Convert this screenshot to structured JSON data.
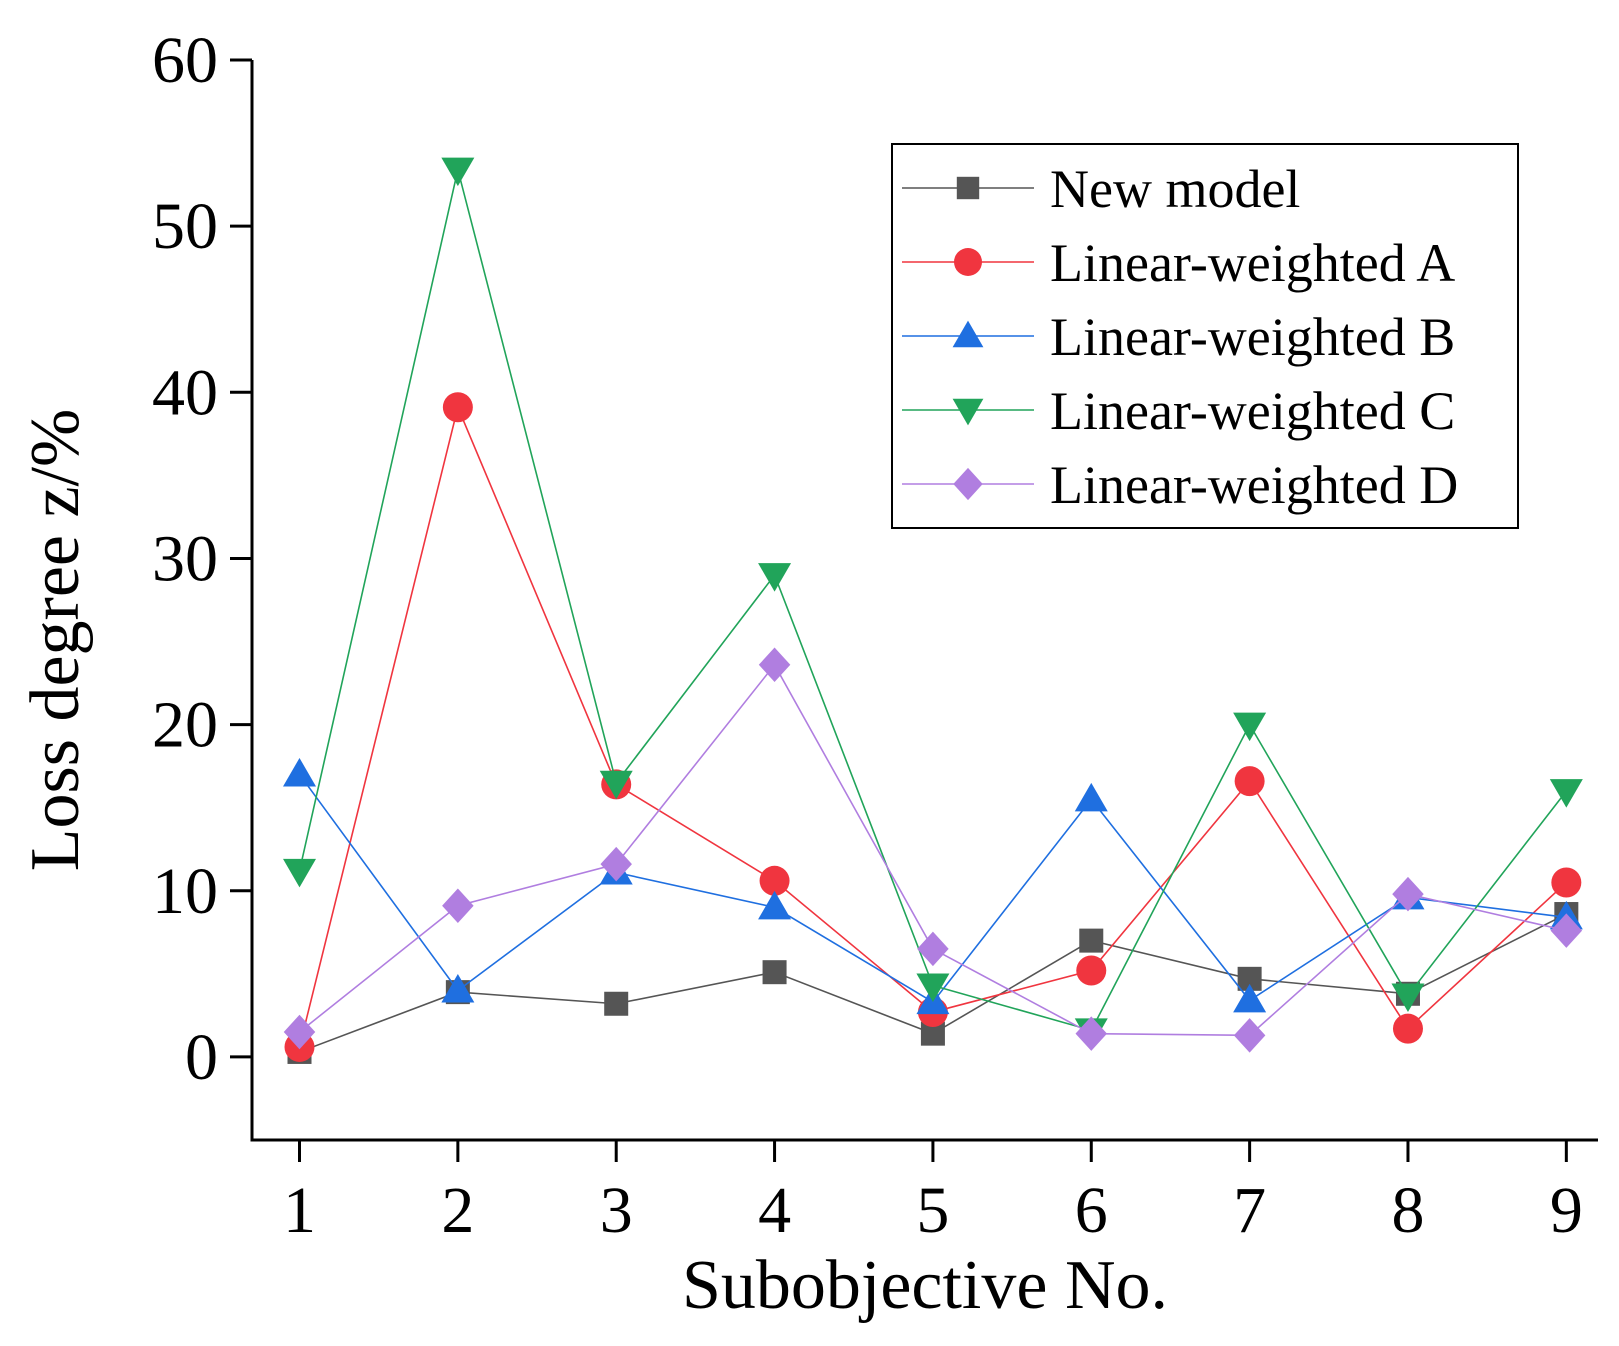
{
  "chart_data": {
    "type": "line",
    "xlabel": "Subobjective No.",
    "ylabel": "Loss degree z/%",
    "x": [
      1,
      2,
      3,
      4,
      5,
      6,
      7,
      8,
      9
    ],
    "xlim": [
      0.7,
      9.2
    ],
    "ylim": [
      -5,
      60
    ],
    "yticks": [
      0,
      10,
      20,
      30,
      40,
      50,
      60
    ],
    "grid": false,
    "legend_position": "top-right",
    "series": [
      {
        "name": "New model",
        "color": "#555555",
        "marker": "square",
        "values": [
          0.3,
          3.9,
          3.2,
          5.1,
          1.4,
          7.0,
          4.7,
          3.8,
          8.6
        ]
      },
      {
        "name": "Linear-weighted A",
        "color": "#f0353f",
        "marker": "circle",
        "values": [
          0.6,
          39.1,
          16.4,
          10.6,
          2.7,
          5.2,
          16.6,
          1.7,
          10.5
        ]
      },
      {
        "name": "Linear-weighted B",
        "color": "#1f6fe0",
        "marker": "triangle-up",
        "values": [
          17.0,
          4.0,
          11.1,
          9.0,
          3.3,
          15.5,
          3.4,
          9.6,
          8.4
        ]
      },
      {
        "name": "Linear-weighted C",
        "color": "#21a45a",
        "marker": "triangle-down",
        "values": [
          11.2,
          53.4,
          16.5,
          29.0,
          4.3,
          1.6,
          20.0,
          3.7,
          16.0
        ]
      },
      {
        "name": "Linear-weighted D",
        "color": "#b07ee0",
        "marker": "diamond",
        "values": [
          1.5,
          9.1,
          11.6,
          23.6,
          6.5,
          1.4,
          1.3,
          9.8,
          7.6
        ]
      }
    ]
  }
}
